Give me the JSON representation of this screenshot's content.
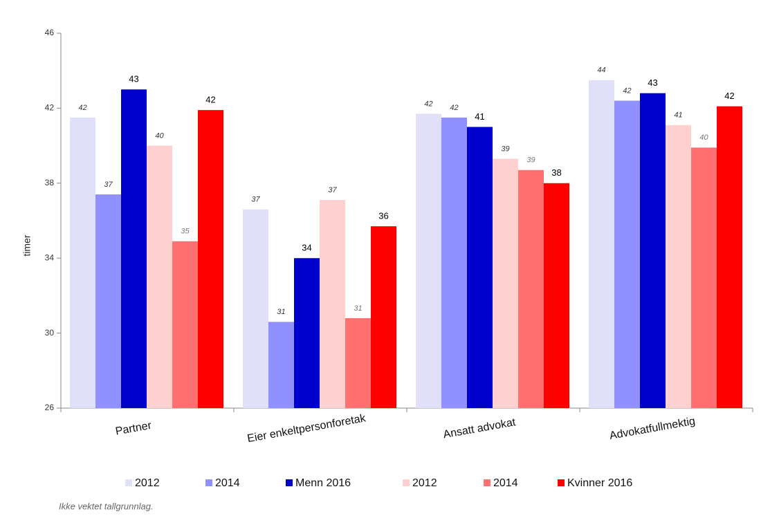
{
  "chart_data": {
    "type": "bar",
    "y_label": "timer",
    "footnote": "Ikke vektet tallgrunnlag.",
    "categories": [
      "Partner",
      "Eier enkeltpersonforetak",
      "Ansatt advokat",
      "Advokatfullmektig"
    ],
    "ylim": [
      26,
      46
    ],
    "yticks": [
      26,
      30,
      34,
      38,
      42,
      46
    ],
    "series": [
      {
        "name": "2012",
        "color": "#e0e0f8",
        "values": [
          41.5,
          36.6,
          41.7,
          43.5
        ],
        "value_labels": [
          "42",
          "37",
          "42",
          "44"
        ]
      },
      {
        "name": "2014",
        "color": "#9090ff",
        "values": [
          37.4,
          30.6,
          41.5,
          42.4
        ],
        "value_labels": [
          "37",
          "31",
          "42",
          "42"
        ]
      },
      {
        "name": "Menn 2016",
        "color": "#0000cc",
        "values": [
          43.0,
          34.0,
          41.0,
          42.8
        ],
        "value_labels": [
          "43",
          "34",
          "41",
          "43"
        ]
      },
      {
        "name": "2012",
        "color": "#ffd0d0",
        "values": [
          40.0,
          37.1,
          39.3,
          41.1
        ],
        "value_labels": [
          "40",
          "37",
          "39",
          "41"
        ]
      },
      {
        "name": "2014",
        "color": "#ff7070",
        "values": [
          34.9,
          30.8,
          38.7,
          39.9
        ],
        "value_labels": [
          "35",
          "31",
          "39",
          "40"
        ]
      },
      {
        "name": "Kvinner 2016",
        "color": "#ff0000",
        "values": [
          41.9,
          35.7,
          38.0,
          42.1
        ],
        "value_labels": [
          "42",
          "36",
          "38",
          "42"
        ]
      }
    ]
  }
}
